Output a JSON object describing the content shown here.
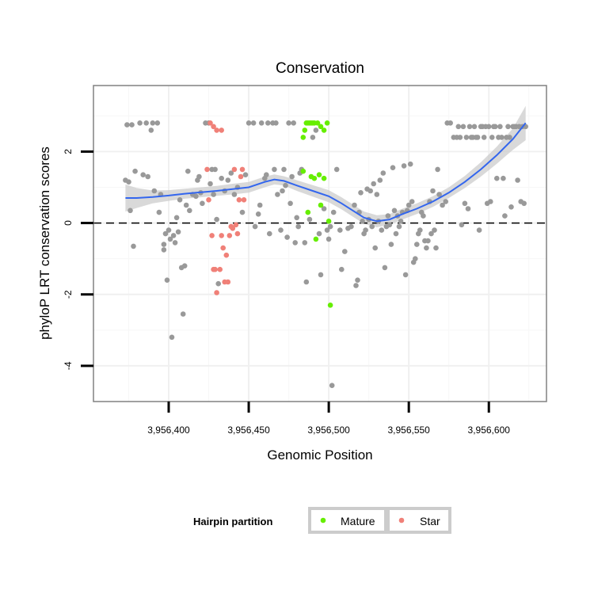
{
  "chart_data": {
    "type": "scatter",
    "title": "Conservation",
    "xlabel": "Genomic Position",
    "ylabel": "phyloP LRT conservation scores",
    "xlim": [
      3956353,
      3956636
    ],
    "ylim": [
      -5.0,
      3.85
    ],
    "x_ticks": [
      {
        "value": 3956400,
        "label": "3,956,400"
      },
      {
        "value": 3956450,
        "label": "3,956,450"
      },
      {
        "value": 3956500,
        "label": "3,956,500"
      },
      {
        "value": 3956550,
        "label": "3,956,550"
      },
      {
        "value": 3956600,
        "label": "3,956,600"
      }
    ],
    "y_ticks": [
      {
        "value": 2,
        "label": "2"
      },
      {
        "value": 0,
        "label": "0"
      },
      {
        "value": -2,
        "label": "-2"
      },
      {
        "value": -4,
        "label": "-4"
      }
    ],
    "reference_line": {
      "y": 0,
      "style": "dashed"
    },
    "grid": true,
    "colors": {
      "background": "#ffffff",
      "grid": "#f0f0f0",
      "other": "#999999",
      "mature": "#66ee00",
      "star": "#f08078",
      "smooth": "#3366ee",
      "ribbon": "#cccccc"
    },
    "legend": {
      "title": "Hairpin partition",
      "position": "bottom",
      "entries": [
        {
          "label": "Mature",
          "color": "#66ee00"
        },
        {
          "label": "Star",
          "color": "#f08078"
        }
      ]
    },
    "series": [
      {
        "group": "other",
        "points": [
          [
            3956374,
            2.75
          ],
          [
            3956377,
            2.75
          ],
          [
            3956382,
            2.8
          ],
          [
            3956386,
            2.8
          ],
          [
            3956389,
            2.6
          ],
          [
            3956390,
            2.8
          ],
          [
            3956393,
            2.8
          ],
          [
            3956373,
            1.2
          ],
          [
            3956375,
            1.15
          ],
          [
            3956376,
            0.35
          ],
          [
            3956379,
            1.45
          ],
          [
            3956378,
            -0.65
          ],
          [
            3956384,
            1.35
          ],
          [
            3956387,
            1.3
          ],
          [
            3956391,
            0.9
          ],
          [
            3956394,
            0.3
          ],
          [
            3956395,
            0.8
          ],
          [
            3956397,
            -0.6
          ],
          [
            3956397,
            -0.75
          ],
          [
            3956398,
            -0.3
          ],
          [
            3956399,
            -1.6
          ],
          [
            3956400,
            -0.2
          ],
          [
            3956401,
            -0.45
          ],
          [
            3956402,
            -3.2
          ],
          [
            3956403,
            -0.35
          ],
          [
            3956404,
            -0.55
          ],
          [
            3956405,
            0.15
          ],
          [
            3956406,
            -0.25
          ],
          [
            3956407,
            0.65
          ],
          [
            3956408,
            -1.25
          ],
          [
            3956409,
            -2.55
          ],
          [
            3956410,
            -1.2
          ],
          [
            3956411,
            0.5
          ],
          [
            3956412,
            1.45
          ],
          [
            3956413,
            0.35
          ],
          [
            3956415,
            0.8
          ],
          [
            3956417,
            0.75
          ],
          [
            3956418,
            1.2
          ],
          [
            3956419,
            1.3
          ],
          [
            3956420,
            0.85
          ],
          [
            3956421,
            0.55
          ],
          [
            3956423,
            2.8
          ],
          [
            3956425,
            2.8
          ],
          [
            3956426,
            1.1
          ],
          [
            3956427,
            1.5
          ],
          [
            3956428,
            0.8
          ],
          [
            3956429,
            1.5
          ],
          [
            3956430,
            0.1
          ],
          [
            3956431,
            -1.7
          ],
          [
            3956433,
            1.25
          ],
          [
            3956435,
            0.9
          ],
          [
            3956437,
            1.2
          ],
          [
            3956439,
            1.4
          ],
          [
            3956441,
            0.8
          ],
          [
            3956443,
            1.0
          ],
          [
            3956446,
            0.3
          ],
          [
            3956448,
            1.35
          ],
          [
            3956450,
            2.8
          ],
          [
            3956453,
            2.8
          ],
          [
            3956454,
            -0.1
          ],
          [
            3956456,
            0.25
          ],
          [
            3956457,
            0.5
          ],
          [
            3956458,
            2.8
          ],
          [
            3956460,
            1.25
          ],
          [
            3956461,
            1.35
          ],
          [
            3956462,
            2.8
          ],
          [
            3956463,
            -0.3
          ],
          [
            3956465,
            2.8
          ],
          [
            3956466,
            1.5
          ],
          [
            3956467,
            2.8
          ],
          [
            3956468,
            0.8
          ],
          [
            3956470,
            -0.2
          ],
          [
            3956471,
            0.9
          ],
          [
            3956472,
            1.5
          ],
          [
            3956473,
            1.05
          ],
          [
            3956474,
            -0.4
          ],
          [
            3956475,
            2.8
          ],
          [
            3956476,
            0.55
          ],
          [
            3956477,
            1.3
          ],
          [
            3956478,
            2.8
          ],
          [
            3956479,
            -0.55
          ],
          [
            3956480,
            0.15
          ],
          [
            3956481,
            -0.1
          ],
          [
            3956482,
            1.4
          ],
          [
            3956483,
            1.5
          ],
          [
            3956485,
            -0.55
          ],
          [
            3956486,
            -1.65
          ],
          [
            3956488,
            0.1
          ],
          [
            3956490,
            2.4
          ],
          [
            3956492,
            2.6
          ],
          [
            3956494,
            -0.3
          ],
          [
            3956495,
            -1.45
          ],
          [
            3956497,
            0.4
          ],
          [
            3956499,
            -0.2
          ],
          [
            3956500,
            -0.45
          ],
          [
            3956501,
            -0.1
          ],
          [
            3956502,
            -4.55
          ],
          [
            3956503,
            0.3
          ],
          [
            3956505,
            1.5
          ],
          [
            3956507,
            -0.2
          ],
          [
            3956508,
            -1.3
          ],
          [
            3956510,
            -0.8
          ],
          [
            3956512,
            -0.15
          ],
          [
            3956514,
            -0.1
          ],
          [
            3956516,
            0.5
          ],
          [
            3956517,
            -1.75
          ],
          [
            3956518,
            -1.6
          ],
          [
            3956519,
            0.3
          ],
          [
            3956520,
            0.85
          ],
          [
            3956521,
            0.05
          ],
          [
            3956522,
            -0.3
          ],
          [
            3956523,
            -0.2
          ],
          [
            3956524,
            0.95
          ],
          [
            3956525,
            0.1
          ],
          [
            3956526,
            0.9
          ],
          [
            3956527,
            -0.1
          ],
          [
            3956528,
            1.1
          ],
          [
            3956529,
            -0.7
          ],
          [
            3956530,
            0.8
          ],
          [
            3956531,
            0.05
          ],
          [
            3956532,
            1.2
          ],
          [
            3956533,
            -0.2
          ],
          [
            3956534,
            1.4
          ],
          [
            3956535,
            -1.25
          ],
          [
            3956536,
            -0.1
          ],
          [
            3956537,
            0.2
          ],
          [
            3956538,
            -0.05
          ],
          [
            3956539,
            -0.6
          ],
          [
            3956540,
            1.55
          ],
          [
            3956541,
            0.35
          ],
          [
            3956542,
            -0.3
          ],
          [
            3956543,
            0.2
          ],
          [
            3956544,
            -0.1
          ],
          [
            3956545,
            0.05
          ],
          [
            3956546,
            0.3
          ],
          [
            3956547,
            1.6
          ],
          [
            3956548,
            -1.45
          ],
          [
            3956549,
            0.35
          ],
          [
            3956550,
            0.5
          ],
          [
            3956551,
            1.65
          ],
          [
            3956552,
            0.6
          ],
          [
            3956553,
            -1.1
          ],
          [
            3956554,
            -1.0
          ],
          [
            3956555,
            -0.6
          ],
          [
            3956556,
            -0.3
          ],
          [
            3956557,
            -0.2
          ],
          [
            3956558,
            0.3
          ],
          [
            3956559,
            0.2
          ],
          [
            3956560,
            -0.5
          ],
          [
            3956561,
            -0.7
          ],
          [
            3956562,
            -0.5
          ],
          [
            3956563,
            0.6
          ],
          [
            3956564,
            -0.3
          ],
          [
            3956565,
            0.9
          ],
          [
            3956566,
            -0.2
          ],
          [
            3956567,
            -0.7
          ],
          [
            3956568,
            1.5
          ],
          [
            3956569,
            0.8
          ],
          [
            3956571,
            0.5
          ],
          [
            3956573,
            0.6
          ],
          [
            3956574,
            2.8
          ],
          [
            3956576,
            2.8
          ],
          [
            3956578,
            2.4
          ],
          [
            3956580,
            2.4
          ],
          [
            3956581,
            2.7
          ],
          [
            3956582,
            2.4
          ],
          [
            3956583,
            -0.05
          ],
          [
            3956584,
            2.7
          ],
          [
            3956585,
            0.55
          ],
          [
            3956586,
            2.4
          ],
          [
            3956587,
            0.4
          ],
          [
            3956588,
            2.7
          ],
          [
            3956589,
            2.4
          ],
          [
            3956590,
            2.4
          ],
          [
            3956591,
            2.7
          ],
          [
            3956592,
            2.4
          ],
          [
            3956593,
            2.4
          ],
          [
            3956594,
            -0.2
          ],
          [
            3956595,
            2.7
          ],
          [
            3956596,
            2.7
          ],
          [
            3956597,
            2.4
          ],
          [
            3956598,
            2.7
          ],
          [
            3956599,
            0.55
          ],
          [
            3956600,
            2.7
          ],
          [
            3956601,
            0.6
          ],
          [
            3956602,
            2.4
          ],
          [
            3956603,
            2.7
          ],
          [
            3956604,
            2.7
          ],
          [
            3956605,
            1.25
          ],
          [
            3956606,
            2.4
          ],
          [
            3956607,
            2.7
          ],
          [
            3956608,
            2.4
          ],
          [
            3956609,
            1.25
          ],
          [
            3956610,
            0.2
          ],
          [
            3956611,
            2.4
          ],
          [
            3956612,
            2.7
          ],
          [
            3956613,
            2.4
          ],
          [
            3956614,
            0.45
          ],
          [
            3956615,
            2.7
          ],
          [
            3956616,
            2.7
          ],
          [
            3956617,
            2.7
          ],
          [
            3956618,
            1.2
          ],
          [
            3956619,
            2.7
          ],
          [
            3956620,
            0.6
          ],
          [
            3956621,
            2.7
          ],
          [
            3956622,
            0.55
          ],
          [
            3956623,
            2.7
          ]
        ]
      },
      {
        "group": "star",
        "name": "Star",
        "points": [
          [
            3956426,
            2.8
          ],
          [
            3956428,
            2.7
          ],
          [
            3956430,
            2.6
          ],
          [
            3956433,
            2.6
          ],
          [
            3956424,
            1.5
          ],
          [
            3956425,
            0.65
          ],
          [
            3956427,
            -0.35
          ],
          [
            3956428,
            -1.3
          ],
          [
            3956429,
            -1.3
          ],
          [
            3956430,
            -1.95
          ],
          [
            3956432,
            -1.3
          ],
          [
            3956433,
            -0.35
          ],
          [
            3956434,
            -0.7
          ],
          [
            3956435,
            -1.65
          ],
          [
            3956436,
            -0.9
          ],
          [
            3956437,
            -1.65
          ],
          [
            3956438,
            -0.35
          ],
          [
            3956439,
            -0.1
          ],
          [
            3956440,
            -0.15
          ],
          [
            3956441,
            1.5
          ],
          [
            3956442,
            -0.05
          ],
          [
            3956443,
            -0.3
          ],
          [
            3956444,
            0.65
          ],
          [
            3956445,
            1.3
          ],
          [
            3956446,
            1.5
          ],
          [
            3956447,
            0.65
          ]
        ]
      },
      {
        "group": "mature",
        "name": "Mature",
        "points": [
          [
            3956484,
            2.4
          ],
          [
            3956485,
            2.6
          ],
          [
            3956486,
            2.8
          ],
          [
            3956487,
            2.8
          ],
          [
            3956488,
            2.8
          ],
          [
            3956489,
            2.8
          ],
          [
            3956490,
            2.8
          ],
          [
            3956491,
            2.8
          ],
          [
            3956493,
            2.8
          ],
          [
            3956495,
            2.7
          ],
          [
            3956497,
            2.6
          ],
          [
            3956499,
            2.8
          ],
          [
            3956484,
            1.45
          ],
          [
            3956487,
            0.3
          ],
          [
            3956489,
            1.3
          ],
          [
            3956491,
            1.25
          ],
          [
            3956492,
            -0.45
          ],
          [
            3956494,
            1.35
          ],
          [
            3956495,
            0.5
          ],
          [
            3956497,
            1.25
          ],
          [
            3956500,
            0.05
          ],
          [
            3956501,
            -2.3
          ]
        ]
      }
    ],
    "smooth": {
      "x": [
        3956373,
        3956380,
        3956390,
        3956400,
        3956410,
        3956420,
        3956430,
        3956440,
        3956450,
        3956460,
        3956466,
        3956472,
        3956480,
        3956490,
        3956500,
        3956508,
        3956515,
        3956522,
        3956530,
        3956538,
        3956546,
        3956555,
        3956565,
        3956575,
        3956585,
        3956595,
        3956605,
        3956615,
        3956623
      ],
      "y": [
        0.7,
        0.7,
        0.73,
        0.77,
        0.82,
        0.86,
        0.9,
        0.95,
        1.0,
        1.15,
        1.22,
        1.18,
        1.05,
        0.9,
        0.75,
        0.55,
        0.35,
        0.15,
        0.05,
        0.1,
        0.25,
        0.4,
        0.6,
        0.85,
        1.15,
        1.5,
        1.9,
        2.35,
        2.8
      ],
      "lo": [
        0.32,
        0.42,
        0.55,
        0.62,
        0.68,
        0.72,
        0.76,
        0.8,
        0.85,
        1.0,
        1.08,
        1.05,
        0.9,
        0.74,
        0.58,
        0.38,
        0.18,
        -0.02,
        -0.12,
        -0.05,
        0.1,
        0.25,
        0.45,
        0.7,
        0.98,
        1.3,
        1.66,
        2.05,
        2.32
      ],
      "hi": [
        1.08,
        0.98,
        0.91,
        0.92,
        0.96,
        1.0,
        1.04,
        1.1,
        1.15,
        1.3,
        1.36,
        1.31,
        1.2,
        1.06,
        0.92,
        0.72,
        0.52,
        0.32,
        0.22,
        0.25,
        0.4,
        0.55,
        0.75,
        1.0,
        1.32,
        1.7,
        2.14,
        2.65,
        3.28
      ]
    }
  }
}
